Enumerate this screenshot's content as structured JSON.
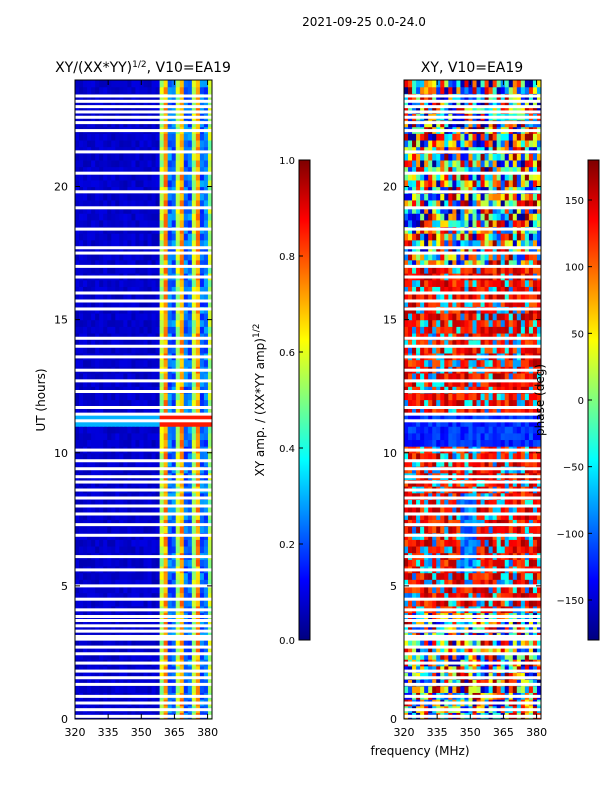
{
  "suptitle": "2021-09-25 0.0-24.0",
  "colors": {
    "jet": [
      "#00007f",
      "#0000ff",
      "#007fff",
      "#00ffff",
      "#7fff7f",
      "#ffff00",
      "#ff7f00",
      "#ff0000",
      "#7f0000"
    ],
    "background": "#ffffff",
    "gap": "#ffffff"
  },
  "chart_data": [
    {
      "type": "heatmap",
      "title": "XY/(XX*YY)^{1/2}, V10=EA19",
      "title_main": "XY/(XX*YY)",
      "title_sup": "1/2",
      "title_tail": ", V10=EA19",
      "xlabel": "frequency (MHz)",
      "ylabel": "UT (hours)",
      "xlim": [
        320,
        382
      ],
      "ylim": [
        0,
        24
      ],
      "xticks": [
        320,
        335,
        350,
        365,
        380
      ],
      "yticks": [
        0,
        5,
        10,
        15,
        20
      ],
      "colorbar": {
        "label": "XY amp. / (XX*YY amp)^{1/2}",
        "label_main": "XY amp. / (XX*YY amp)",
        "label_sup": "1/2",
        "range": [
          0.0,
          1.0
        ],
        "ticks": [
          "0.0",
          "0.2",
          "0.4",
          "0.6",
          "0.8",
          "1.0"
        ]
      },
      "description": "low amplitude (~0.05) below 360 MHz, channelized high-amplitude stripes (0.3-0.7) between 360 and 381 MHz, strong band near UT 11"
    },
    {
      "type": "heatmap",
      "title": "XY, V10=EA19",
      "xlabel": "frequency (MHz)",
      "ylabel": "",
      "xlim": [
        320,
        382
      ],
      "ylim": [
        0,
        24
      ],
      "xticks": [
        320,
        335,
        350,
        365,
        380
      ],
      "yticks": [
        0,
        5,
        10,
        15,
        20
      ],
      "colorbar": {
        "label": "phase (deg)",
        "range": [
          -180,
          180
        ],
        "ticks": [
          "−150",
          "−100",
          "−50",
          "0",
          "50",
          "100",
          "150"
        ],
        "tick_values": [
          -150,
          -100,
          -50,
          0,
          50,
          100,
          150
        ]
      },
      "description": "phase noisy across band; ~100-150 deg (red) dominant between UT 4-17, blue band near UT 11"
    }
  ],
  "gaps_hours": [
    0.1,
    0.35,
    0.6,
    0.85,
    1.3,
    1.55,
    1.8,
    2.1,
    2.45,
    2.7,
    3.0,
    3.1,
    3.3,
    3.5,
    3.7,
    3.85,
    4.1,
    4.5,
    5.0,
    5.6,
    6.1,
    6.9,
    7.3,
    7.7,
    8.0,
    8.3,
    8.6,
    8.9,
    9.1,
    9.4,
    9.7,
    10.1,
    11.2,
    11.45,
    11.7,
    12.3,
    12.7,
    13.1,
    13.6,
    14.0,
    14.3,
    15.4,
    15.7,
    16.0,
    16.6,
    17.0,
    17.5,
    17.7,
    18.4,
    19.2,
    19.8,
    20.5,
    21.3,
    22.1,
    22.4,
    22.6,
    22.8,
    23.0,
    23.2,
    23.4
  ]
}
